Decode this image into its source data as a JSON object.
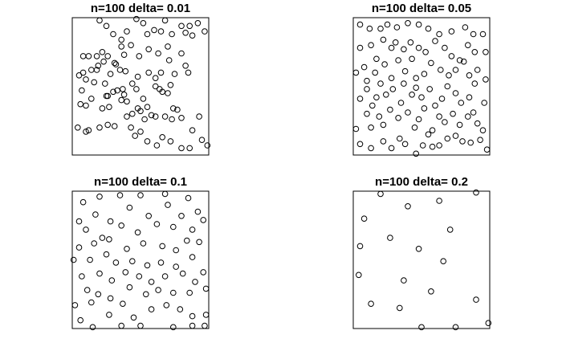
{
  "figure": {
    "background": "#ffffff",
    "point_color": "#000000",
    "point_symbol": "open-circle",
    "axes_shown": false
  },
  "chart_data": [
    {
      "type": "scatter",
      "title": "n=100 delta= 0.01",
      "xlim": [
        0,
        1
      ],
      "ylim": [
        0,
        1
      ],
      "points": [
        [
          0.2,
          0.98
        ],
        [
          0.25,
          0.94
        ],
        [
          0.3,
          0.88
        ],
        [
          0.36,
          0.84
        ],
        [
          0.4,
          0.9
        ],
        [
          0.47,
          0.99
        ],
        [
          0.52,
          0.96
        ],
        [
          0.55,
          0.88
        ],
        [
          0.6,
          0.91
        ],
        [
          0.65,
          0.9
        ],
        [
          0.68,
          0.98
        ],
        [
          0.73,
          0.88
        ],
        [
          0.8,
          0.94
        ],
        [
          0.83,
          0.89
        ],
        [
          0.86,
          0.94
        ],
        [
          0.88,
          0.87
        ],
        [
          0.92,
          0.96
        ],
        [
          0.97,
          0.9
        ],
        [
          0.08,
          0.72
        ],
        [
          0.12,
          0.72
        ],
        [
          0.18,
          0.72
        ],
        [
          0.22,
          0.75
        ],
        [
          0.26,
          0.72
        ],
        [
          0.31,
          0.67
        ],
        [
          0.36,
          0.79
        ],
        [
          0.38,
          0.73
        ],
        [
          0.43,
          0.8
        ],
        [
          0.49,
          0.72
        ],
        [
          0.56,
          0.77
        ],
        [
          0.63,
          0.74
        ],
        [
          0.7,
          0.79
        ],
        [
          0.71,
          0.69
        ],
        [
          0.8,
          0.74
        ],
        [
          0.83,
          0.65
        ],
        [
          0.85,
          0.6
        ],
        [
          0.05,
          0.58
        ],
        [
          0.08,
          0.6
        ],
        [
          0.14,
          0.62
        ],
        [
          0.18,
          0.62
        ],
        [
          0.19,
          0.65
        ],
        [
          0.23,
          0.68
        ],
        [
          0.28,
          0.59
        ],
        [
          0.32,
          0.66
        ],
        [
          0.35,
          0.62
        ],
        [
          0.39,
          0.61
        ],
        [
          0.44,
          0.52
        ],
        [
          0.48,
          0.57
        ],
        [
          0.56,
          0.6
        ],
        [
          0.61,
          0.56
        ],
        [
          0.65,
          0.6
        ],
        [
          0.66,
          0.46
        ],
        [
          0.72,
          0.51
        ],
        [
          0.75,
          0.59
        ],
        [
          0.07,
          0.47
        ],
        [
          0.1,
          0.55
        ],
        [
          0.16,
          0.53
        ],
        [
          0.24,
          0.52
        ],
        [
          0.25,
          0.43
        ],
        [
          0.26,
          0.43
        ],
        [
          0.27,
          0.35
        ],
        [
          0.33,
          0.47
        ],
        [
          0.36,
          0.4
        ],
        [
          0.37,
          0.48
        ],
        [
          0.38,
          0.44
        ],
        [
          0.47,
          0.48
        ],
        [
          0.52,
          0.41
        ],
        [
          0.55,
          0.35
        ],
        [
          0.61,
          0.5
        ],
        [
          0.64,
          0.48
        ],
        [
          0.7,
          0.45
        ],
        [
          0.06,
          0.37
        ],
        [
          0.1,
          0.36
        ],
        [
          0.14,
          0.41
        ],
        [
          0.22,
          0.34
        ],
        [
          0.3,
          0.46
        ],
        [
          0.4,
          0.39
        ],
        [
          0.44,
          0.3
        ],
        [
          0.48,
          0.34
        ],
        [
          0.5,
          0.32
        ],
        [
          0.53,
          0.26
        ],
        [
          0.58,
          0.29
        ],
        [
          0.61,
          0.28
        ],
        [
          0.68,
          0.28
        ],
        [
          0.73,
          0.26
        ],
        [
          0.74,
          0.34
        ],
        [
          0.77,
          0.33
        ],
        [
          0.8,
          0.27
        ],
        [
          0.04,
          0.2
        ],
        [
          0.1,
          0.17
        ],
        [
          0.12,
          0.18
        ],
        [
          0.2,
          0.2
        ],
        [
          0.26,
          0.22
        ],
        [
          0.31,
          0.21
        ],
        [
          0.4,
          0.28
        ],
        [
          0.43,
          0.2
        ],
        [
          0.46,
          0.14
        ],
        [
          0.5,
          0.17
        ],
        [
          0.55,
          0.1
        ],
        [
          0.62,
          0.07
        ],
        [
          0.66,
          0.13
        ],
        [
          0.72,
          0.1
        ],
        [
          0.8,
          0.05
        ],
        [
          0.86,
          0.05
        ],
        [
          0.88,
          0.18
        ],
        [
          0.93,
          0.28
        ],
        [
          0.95,
          0.11
        ],
        [
          0.99,
          0.07
        ]
      ]
    },
    {
      "type": "scatter",
      "title": "n=100 delta= 0.05",
      "xlim": [
        0,
        1
      ],
      "ylim": [
        0,
        1
      ],
      "points": [
        [
          0.05,
          0.95
        ],
        [
          0.12,
          0.92
        ],
        [
          0.2,
          0.92
        ],
        [
          0.25,
          0.95
        ],
        [
          0.32,
          0.93
        ],
        [
          0.4,
          0.96
        ],
        [
          0.48,
          0.95
        ],
        [
          0.55,
          0.92
        ],
        [
          0.63,
          0.88
        ],
        [
          0.72,
          0.9
        ],
        [
          0.82,
          0.93
        ],
        [
          0.88,
          0.88
        ],
        [
          0.95,
          0.88
        ],
        [
          0.05,
          0.78
        ],
        [
          0.13,
          0.8
        ],
        [
          0.17,
          0.7
        ],
        [
          0.22,
          0.84
        ],
        [
          0.28,
          0.78
        ],
        [
          0.31,
          0.82
        ],
        [
          0.37,
          0.77
        ],
        [
          0.42,
          0.82
        ],
        [
          0.48,
          0.78
        ],
        [
          0.53,
          0.75
        ],
        [
          0.6,
          0.83
        ],
        [
          0.67,
          0.78
        ],
        [
          0.72,
          0.72
        ],
        [
          0.78,
          0.69
        ],
        [
          0.84,
          0.8
        ],
        [
          0.89,
          0.75
        ],
        [
          0.97,
          0.75
        ],
        [
          0.02,
          0.6
        ],
        [
          0.08,
          0.64
        ],
        [
          0.1,
          0.54
        ],
        [
          0.16,
          0.6
        ],
        [
          0.23,
          0.66
        ],
        [
          0.28,
          0.56
        ],
        [
          0.33,
          0.69
        ],
        [
          0.38,
          0.61
        ],
        [
          0.43,
          0.7
        ],
        [
          0.46,
          0.56
        ],
        [
          0.52,
          0.59
        ],
        [
          0.57,
          0.67
        ],
        [
          0.64,
          0.62
        ],
        [
          0.7,
          0.58
        ],
        [
          0.75,
          0.62
        ],
        [
          0.81,
          0.68
        ],
        [
          0.85,
          0.58
        ],
        [
          0.91,
          0.62
        ],
        [
          0.97,
          0.55
        ],
        [
          0.05,
          0.41
        ],
        [
          0.1,
          0.48
        ],
        [
          0.14,
          0.36
        ],
        [
          0.17,
          0.42
        ],
        [
          0.2,
          0.52
        ],
        [
          0.24,
          0.44
        ],
        [
          0.29,
          0.48
        ],
        [
          0.35,
          0.38
        ],
        [
          0.37,
          0.52
        ],
        [
          0.43,
          0.44
        ],
        [
          0.46,
          0.49
        ],
        [
          0.5,
          0.42
        ],
        [
          0.56,
          0.48
        ],
        [
          0.6,
          0.36
        ],
        [
          0.65,
          0.41
        ],
        [
          0.69,
          0.5
        ],
        [
          0.75,
          0.45
        ],
        [
          0.79,
          0.38
        ],
        [
          0.85,
          0.42
        ],
        [
          0.89,
          0.52
        ],
        [
          0.96,
          0.38
        ],
        [
          0.02,
          0.19
        ],
        [
          0.1,
          0.3
        ],
        [
          0.13,
          0.2
        ],
        [
          0.19,
          0.28
        ],
        [
          0.22,
          0.22
        ],
        [
          0.27,
          0.33
        ],
        [
          0.33,
          0.27
        ],
        [
          0.4,
          0.31
        ],
        [
          0.45,
          0.2
        ],
        [
          0.48,
          0.26
        ],
        [
          0.52,
          0.34
        ],
        [
          0.58,
          0.18
        ],
        [
          0.63,
          0.28
        ],
        [
          0.67,
          0.24
        ],
        [
          0.73,
          0.3
        ],
        [
          0.78,
          0.22
        ],
        [
          0.84,
          0.28
        ],
        [
          0.88,
          0.31
        ],
        [
          0.91,
          0.23
        ],
        [
          0.95,
          0.18
        ],
        [
          0.05,
          0.08
        ],
        [
          0.13,
          0.05
        ],
        [
          0.22,
          0.1
        ],
        [
          0.28,
          0.05
        ],
        [
          0.34,
          0.12
        ],
        [
          0.38,
          0.08
        ],
        [
          0.46,
          0.01
        ],
        [
          0.51,
          0.07
        ],
        [
          0.55,
          0.15
        ],
        [
          0.58,
          0.06
        ],
        [
          0.63,
          0.07
        ],
        [
          0.69,
          0.12
        ],
        [
          0.75,
          0.14
        ],
        [
          0.8,
          0.1
        ],
        [
          0.86,
          0.09
        ],
        [
          0.93,
          0.11
        ],
        [
          0.98,
          0.04
        ]
      ]
    },
    {
      "type": "scatter",
      "title": "n=100 delta= 0.1",
      "xlim": [
        0,
        1
      ],
      "ylim": [
        0,
        1
      ],
      "points": [
        [
          0.08,
          0.92
        ],
        [
          0.2,
          0.96
        ],
        [
          0.35,
          0.97
        ],
        [
          0.5,
          0.97
        ],
        [
          0.68,
          0.98
        ],
        [
          0.85,
          0.95
        ],
        [
          0.05,
          0.78
        ],
        [
          0.17,
          0.83
        ],
        [
          0.28,
          0.78
        ],
        [
          0.42,
          0.88
        ],
        [
          0.56,
          0.82
        ],
        [
          0.7,
          0.9
        ],
        [
          0.8,
          0.82
        ],
        [
          0.92,
          0.85
        ],
        [
          0.1,
          0.72
        ],
        [
          0.22,
          0.66
        ],
        [
          0.36,
          0.75
        ],
        [
          0.48,
          0.7
        ],
        [
          0.62,
          0.76
        ],
        [
          0.74,
          0.74
        ],
        [
          0.88,
          0.72
        ],
        [
          0.96,
          0.79
        ],
        [
          0.05,
          0.59
        ],
        [
          0.16,
          0.62
        ],
        [
          0.27,
          0.65
        ],
        [
          0.4,
          0.58
        ],
        [
          0.52,
          0.62
        ],
        [
          0.66,
          0.6
        ],
        [
          0.76,
          0.57
        ],
        [
          0.84,
          0.64
        ],
        [
          0.93,
          0.63
        ],
        [
          0.01,
          0.5
        ],
        [
          0.13,
          0.5
        ],
        [
          0.25,
          0.54
        ],
        [
          0.32,
          0.48
        ],
        [
          0.44,
          0.49
        ],
        [
          0.55,
          0.46
        ],
        [
          0.65,
          0.48
        ],
        [
          0.76,
          0.45
        ],
        [
          0.88,
          0.52
        ],
        [
          0.96,
          0.41
        ],
        [
          0.07,
          0.38
        ],
        [
          0.2,
          0.4
        ],
        [
          0.29,
          0.35
        ],
        [
          0.39,
          0.41
        ],
        [
          0.49,
          0.38
        ],
        [
          0.58,
          0.34
        ],
        [
          0.68,
          0.38
        ],
        [
          0.81,
          0.4
        ],
        [
          0.9,
          0.34
        ],
        [
          0.11,
          0.28
        ],
        [
          0.19,
          0.25
        ],
        [
          0.28,
          0.22
        ],
        [
          0.42,
          0.3
        ],
        [
          0.54,
          0.25
        ],
        [
          0.63,
          0.28
        ],
        [
          0.74,
          0.26
        ],
        [
          0.86,
          0.26
        ],
        [
          0.98,
          0.29
        ],
        [
          0.02,
          0.17
        ],
        [
          0.14,
          0.19
        ],
        [
          0.27,
          0.1
        ],
        [
          0.37,
          0.18
        ],
        [
          0.45,
          0.08
        ],
        [
          0.58,
          0.14
        ],
        [
          0.69,
          0.17
        ],
        [
          0.79,
          0.14
        ],
        [
          0.88,
          0.09
        ],
        [
          0.98,
          0.1
        ],
        [
          0.06,
          0.06
        ],
        [
          0.15,
          0.01
        ],
        [
          0.36,
          0.02
        ],
        [
          0.5,
          0.02
        ],
        [
          0.74,
          0.01
        ],
        [
          0.88,
          0.02
        ],
        [
          0.97,
          0.02
        ]
      ]
    },
    {
      "type": "scatter",
      "title": "n=100 delta= 0.2",
      "xlim": [
        0,
        1
      ],
      "ylim": [
        0,
        1
      ],
      "points": [
        [
          0.2,
          0.98
        ],
        [
          0.4,
          0.89
        ],
        [
          0.63,
          0.93
        ],
        [
          0.9,
          0.99
        ],
        [
          0.08,
          0.8
        ],
        [
          0.71,
          0.72
        ],
        [
          0.27,
          0.66
        ],
        [
          0.48,
          0.58
        ],
        [
          0.05,
          0.6
        ],
        [
          0.66,
          0.49
        ],
        [
          0.04,
          0.39
        ],
        [
          0.37,
          0.35
        ],
        [
          0.57,
          0.27
        ],
        [
          0.9,
          0.21
        ],
        [
          0.13,
          0.18
        ],
        [
          0.34,
          0.15
        ],
        [
          0.5,
          0.01
        ],
        [
          0.75,
          0.01
        ],
        [
          0.99,
          0.04
        ]
      ]
    }
  ]
}
